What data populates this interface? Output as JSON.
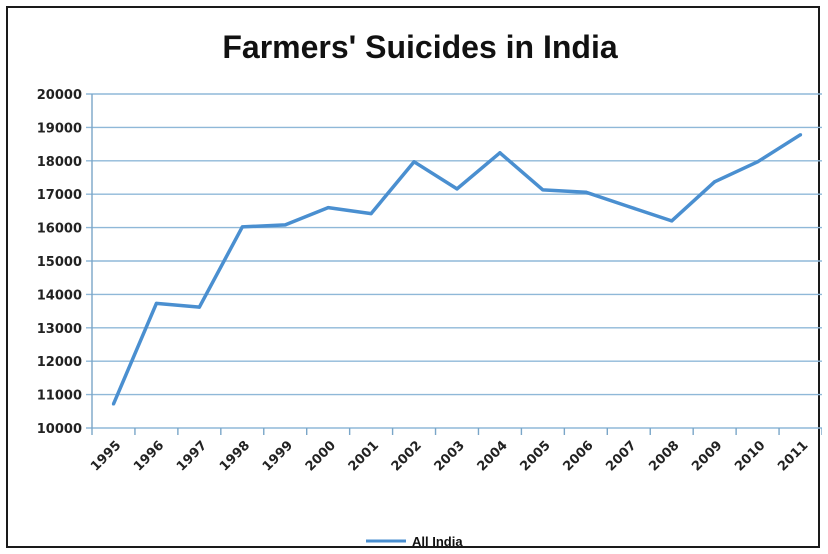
{
  "chart_data": {
    "type": "line",
    "title": "Farmers' Suicides in India",
    "xlabel": "",
    "ylabel": "",
    "categories": [
      "1995",
      "1996",
      "1997",
      "1998",
      "1999",
      "2000",
      "2001",
      "2002",
      "2003",
      "2004",
      "2005",
      "2006",
      "2007",
      "2008",
      "2009",
      "2010",
      "2011"
    ],
    "series": [
      {
        "name": "All India",
        "color": "#4a8fd0",
        "values": [
          10720,
          13730,
          13620,
          16020,
          16080,
          16600,
          16420,
          17970,
          17160,
          18240,
          17130,
          17060,
          16630,
          16200,
          17370,
          17970,
          18780
        ]
      }
    ],
    "ylim": [
      10000,
      20000
    ],
    "yticks": [
      10000,
      11000,
      12000,
      13000,
      14000,
      15000,
      16000,
      17000,
      18000,
      19000,
      20000
    ],
    "grid": true,
    "gridColor": "#8fb8d8",
    "legend": "bottom"
  }
}
